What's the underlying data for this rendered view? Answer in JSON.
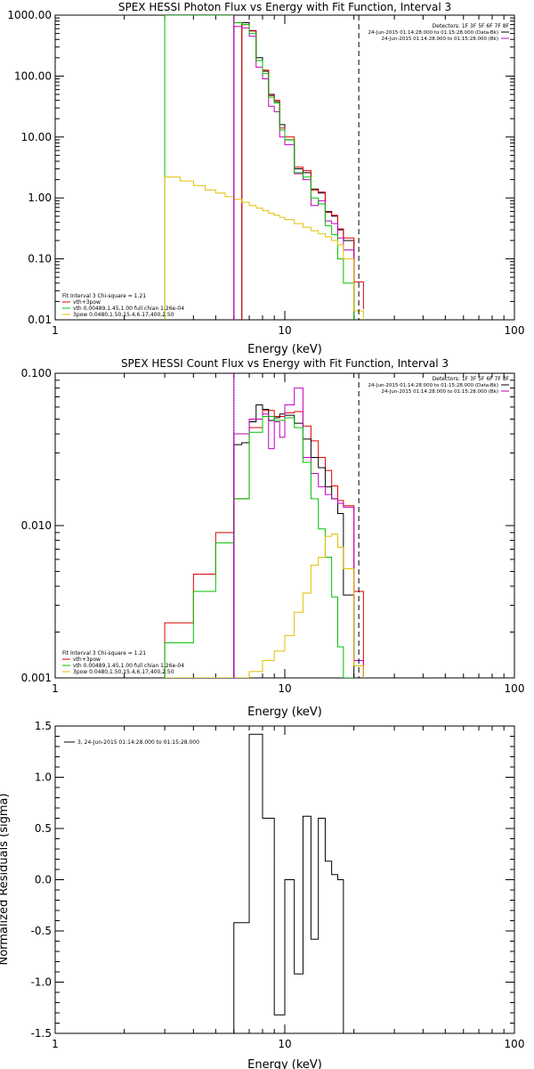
{
  "chart_data": [
    {
      "type": "line",
      "title": "SPEX HESSI Photon Flux vs Energy with Fit Function, Interval 3",
      "xlabel": "Energy (keV)",
      "ylabel": "",
      "xscale": "log",
      "yscale": "log",
      "xlim": [
        1,
        100
      ],
      "ylim": [
        0.01,
        1000
      ],
      "xticks": [
        1,
        10,
        100
      ],
      "xtick_labels": [
        "1",
        "10",
        "100"
      ],
      "yticks": [
        0.01,
        0.1,
        1,
        10,
        100,
        1000
      ],
      "ytick_labels": [
        "0.01",
        "0.10",
        "1.00",
        "10.00",
        "100.00",
        "1000.00"
      ],
      "vlines": [
        {
          "x": 6.0,
          "style": "dotted",
          "color": "#000000"
        },
        {
          "x": 6.0,
          "style": "solid",
          "color": "#b000b0"
        },
        {
          "x": 21.0,
          "style": "dashed",
          "color": "#000000"
        }
      ],
      "legend_top": {
        "position": "top-right",
        "lines": [
          {
            "text": "Detectors: 1F 3F 5F 6F 7F 8F",
            "color": "#000000"
          },
          {
            "text": "24-Jun-2015 01:14:28.000 to 01:15:28.000 (Data-Bk)",
            "color": "#000000"
          },
          {
            "text": "24-Jun-2015 01:14:28.000 to 01:15:28.000 (Bk)",
            "color": "#c000c0"
          }
        ]
      },
      "legend_bottom": {
        "position": "bottom-left",
        "lines": [
          {
            "text": "Fit Interval 3   Chi-square = 1.21",
            "color": "#000000"
          },
          {
            "text": "vth+3pow",
            "color": "#e00000"
          },
          {
            "text": "vth 0.00489,1.45,1.00  full chian 1.26e-04",
            "color": "#00c000"
          },
          {
            "text": "3pow 0.0480,1.50,15.4,6.17,400,2.50",
            "color": "#e0c000"
          }
        ]
      },
      "series": [
        {
          "color": "#000000",
          "edges": [
            6.5,
            7.0,
            7.5,
            8.0,
            8.5,
            9.0,
            9.5,
            10.0,
            11.0,
            12.0,
            13.0,
            14.0,
            15.0,
            16.0,
            17.0,
            18.0,
            20.0
          ],
          "values": [
            750,
            550,
            200,
            120,
            50,
            38,
            16,
            9,
            3.0,
            2.6,
            1.4,
            1.2,
            0.6,
            0.5,
            0.3,
            0.2
          ]
        },
        {
          "color": "#e00000",
          "edges": [
            6.5,
            7.0,
            7.5,
            8.0,
            8.5,
            9.0,
            9.5,
            10.0,
            11.0,
            12.0,
            13.0,
            14.0,
            15.0,
            16.0,
            17.0,
            18.0,
            20.0,
            22.0
          ],
          "values": [
            700,
            560,
            180,
            125,
            48,
            40,
            14,
            10,
            3.2,
            2.8,
            1.35,
            1.25,
            0.58,
            0.52,
            0.31,
            0.22,
            0.042,
            0.015
          ]
        },
        {
          "color": "#c000c0",
          "edges": [
            6.0,
            6.5,
            7.0,
            7.5,
            8.0,
            8.5,
            9.0,
            9.5,
            10.0,
            11.0,
            12.0,
            13.0,
            14.0,
            15.0,
            16.0,
            17.0,
            18.0,
            20.0
          ],
          "values": [
            650,
            620,
            450,
            140,
            90,
            32,
            26,
            10,
            7.5,
            2.5,
            2.0,
            0.75,
            0.9,
            0.42,
            0.38,
            0.22,
            0.14,
            0.018
          ]
        },
        {
          "color": "#00c000",
          "edges": [
            3.0,
            5.3,
            6.0,
            6.5,
            7.0,
            7.5,
            8.0,
            8.5,
            9.0,
            9.5,
            10.0,
            11.0,
            12.0,
            13.0,
            14.0,
            15.0,
            16.0,
            17.0,
            18.0,
            20.0
          ],
          "values": [
            1000,
            1000,
            750,
            700,
            500,
            180,
            110,
            45,
            36,
            13,
            9,
            2.6,
            2.2,
            1.0,
            0.8,
            0.35,
            0.25,
            0.1,
            0.04
          ]
        },
        {
          "color": "#e0c000",
          "edges": [
            3.0,
            3.5,
            4.0,
            4.5,
            5.0,
            5.5,
            6.0,
            6.5,
            7.0,
            7.5,
            8.0,
            8.5,
            9.0,
            9.5,
            10.0,
            11.0,
            12.0,
            13.0,
            14.0,
            15.0,
            16.0,
            17.0,
            18.0,
            20.0,
            22.0
          ],
          "values": [
            2.2,
            1.9,
            1.6,
            1.35,
            1.2,
            1.05,
            0.95,
            0.85,
            0.75,
            0.68,
            0.62,
            0.56,
            0.52,
            0.48,
            0.44,
            0.38,
            0.33,
            0.29,
            0.26,
            0.23,
            0.2,
            0.17,
            0.1,
            0.014
          ]
        }
      ]
    },
    {
      "type": "line",
      "title": "SPEX HESSI Count Flux vs Energy with Fit Function, Interval 3",
      "xlabel": "Energy (keV)",
      "ylabel": "",
      "xscale": "log",
      "yscale": "log",
      "xlim": [
        1,
        100
      ],
      "ylim": [
        0.001,
        0.1
      ],
      "xticks": [
        1,
        10,
        100
      ],
      "xtick_labels": [
        "1",
        "10",
        "100"
      ],
      "yticks": [
        0.001,
        0.01,
        0.1
      ],
      "ytick_labels": [
        "0.001",
        "0.010",
        "0.100"
      ],
      "vlines": [
        {
          "x": 6.0,
          "style": "dotted",
          "color": "#000000"
        },
        {
          "x": 6.0,
          "style": "solid",
          "color": "#b000b0"
        },
        {
          "x": 21.0,
          "style": "dashed",
          "color": "#000000"
        }
      ],
      "legend_top": {
        "position": "top-right",
        "lines": [
          {
            "text": "Detectors: 1F 3F 5F 6F 7F 8F",
            "color": "#000000"
          },
          {
            "text": "24-Jun-2015 01:14:28.000 to 01:15:28.000 (Data-Bk)",
            "color": "#000000"
          },
          {
            "text": "24-Jun-2015 01:14:28.000 to 01:15:28.000 (Bk)",
            "color": "#c000c0"
          }
        ]
      },
      "legend_bottom": {
        "position": "bottom-left",
        "lines": [
          {
            "text": "Fit Interval 3   Chi-square = 1.21",
            "color": "#000000"
          },
          {
            "text": "vth+3pow",
            "color": "#e00000"
          },
          {
            "text": "vth 0.00489,1.45,1.00  full chian 1.26e-04",
            "color": "#00c000"
          },
          {
            "text": "3pow 0.0480,1.50,15.4,6.17,400,2.50",
            "color": "#e0c000"
          }
        ]
      },
      "series": [
        {
          "color": "#e00000",
          "edges": [
            3.0,
            4.0,
            5.0,
            6.0,
            7.0,
            8.0,
            9.0,
            10.0,
            11.0,
            12.0,
            13.0,
            14.0,
            15.0,
            16.0,
            17.0,
            18.0,
            20.0,
            22.0
          ],
          "values": [
            0.0023,
            0.0048,
            0.009,
            0.015,
            0.044,
            0.057,
            0.052,
            0.055,
            0.056,
            0.045,
            0.036,
            0.028,
            0.023,
            0.0182,
            0.0146,
            0.0135,
            0.0037
          ]
        },
        {
          "color": "#000000",
          "edges": [
            6.0,
            6.5,
            7.0,
            7.5,
            8.0,
            8.5,
            9.0,
            9.5,
            10.0,
            11.0,
            12.0,
            13.0,
            14.0,
            15.0,
            16.0,
            17.0,
            18.0,
            20.0
          ],
          "values": [
            0.034,
            0.035,
            0.048,
            0.062,
            0.058,
            0.049,
            0.051,
            0.054,
            0.053,
            0.047,
            0.037,
            0.028,
            0.024,
            0.018,
            0.015,
            0.012,
            0.0035
          ]
        },
        {
          "color": "#c000c0",
          "edges": [
            6.0,
            7.0,
            8.0,
            8.5,
            9.0,
            9.5,
            10.0,
            11.0,
            12.0,
            13.0,
            14.0,
            15.0,
            16.0,
            17.0,
            18.0,
            20.0,
            22.0
          ],
          "values": [
            0.04,
            0.05,
            0.054,
            0.032,
            0.048,
            0.038,
            0.062,
            0.08,
            0.028,
            0.022,
            0.018,
            0.016,
            0.015,
            0.014,
            0.0132,
            0.0013
          ]
        },
        {
          "color": "#00c000",
          "edges": [
            3.0,
            4.0,
            5.0,
            6.0,
            7.0,
            8.0,
            9.0,
            10.0,
            11.0,
            12.0,
            13.0,
            14.0,
            15.0,
            16.0,
            17.0,
            18.0,
            20.0
          ],
          "values": [
            0.0017,
            0.0037,
            0.0077,
            0.015,
            0.041,
            0.052,
            0.049,
            0.051,
            0.044,
            0.026,
            0.015,
            0.0095,
            0.0062,
            0.0034,
            0.0016,
            0.0006
          ]
        },
        {
          "color": "#e0c000",
          "edges": [
            3.0,
            5.0,
            6.0,
            7.0,
            8.0,
            9.0,
            10.0,
            11.0,
            12.0,
            13.0,
            14.0,
            15.0,
            16.0,
            17.0,
            18.0,
            20.0,
            22.0
          ],
          "values": [
            0.0009,
            0.001,
            0.001,
            0.0011,
            0.0013,
            0.0015,
            0.0019,
            0.0027,
            0.0036,
            0.0055,
            0.0062,
            0.0085,
            0.0088,
            0.0072,
            0.0052,
            0.0012
          ]
        }
      ]
    },
    {
      "type": "line",
      "title": "",
      "xlabel": "Energy (keV)",
      "ylabel": "Normalized Residuals (sigma)",
      "xscale": "log",
      "yscale": "linear",
      "xlim": [
        1,
        100
      ],
      "ylim": [
        -1.5,
        1.5
      ],
      "xticks": [
        1,
        10,
        100
      ],
      "xtick_labels": [
        "1",
        "10",
        "100"
      ],
      "yticks": [
        -1.5,
        -1.0,
        -0.5,
        0.0,
        0.5,
        1.0,
        1.5
      ],
      "ytick_labels": [
        "-1.5",
        "-1.0",
        "-0.5",
        "0.0",
        "0.5",
        "1.0",
        "1.5"
      ],
      "legend": {
        "position": "top-left",
        "lines": [
          {
            "text": "3, 24-Jun-2015 01:14:28.000 to 01:15:28.000",
            "color": "#000000"
          }
        ]
      },
      "series": [
        {
          "color": "#000000",
          "edges": [
            6.0,
            7.0,
            8.0,
            9.0,
            10.0,
            11.0,
            12.0,
            13.0,
            14.0,
            15.0,
            16.0,
            17.0,
            18.0,
            20.0
          ],
          "values": [
            -0.42,
            1.42,
            0.6,
            -1.32,
            0.0,
            -0.92,
            0.62,
            -0.58,
            0.6,
            0.18,
            0.05,
            0.0,
            -1.5
          ]
        }
      ]
    }
  ]
}
